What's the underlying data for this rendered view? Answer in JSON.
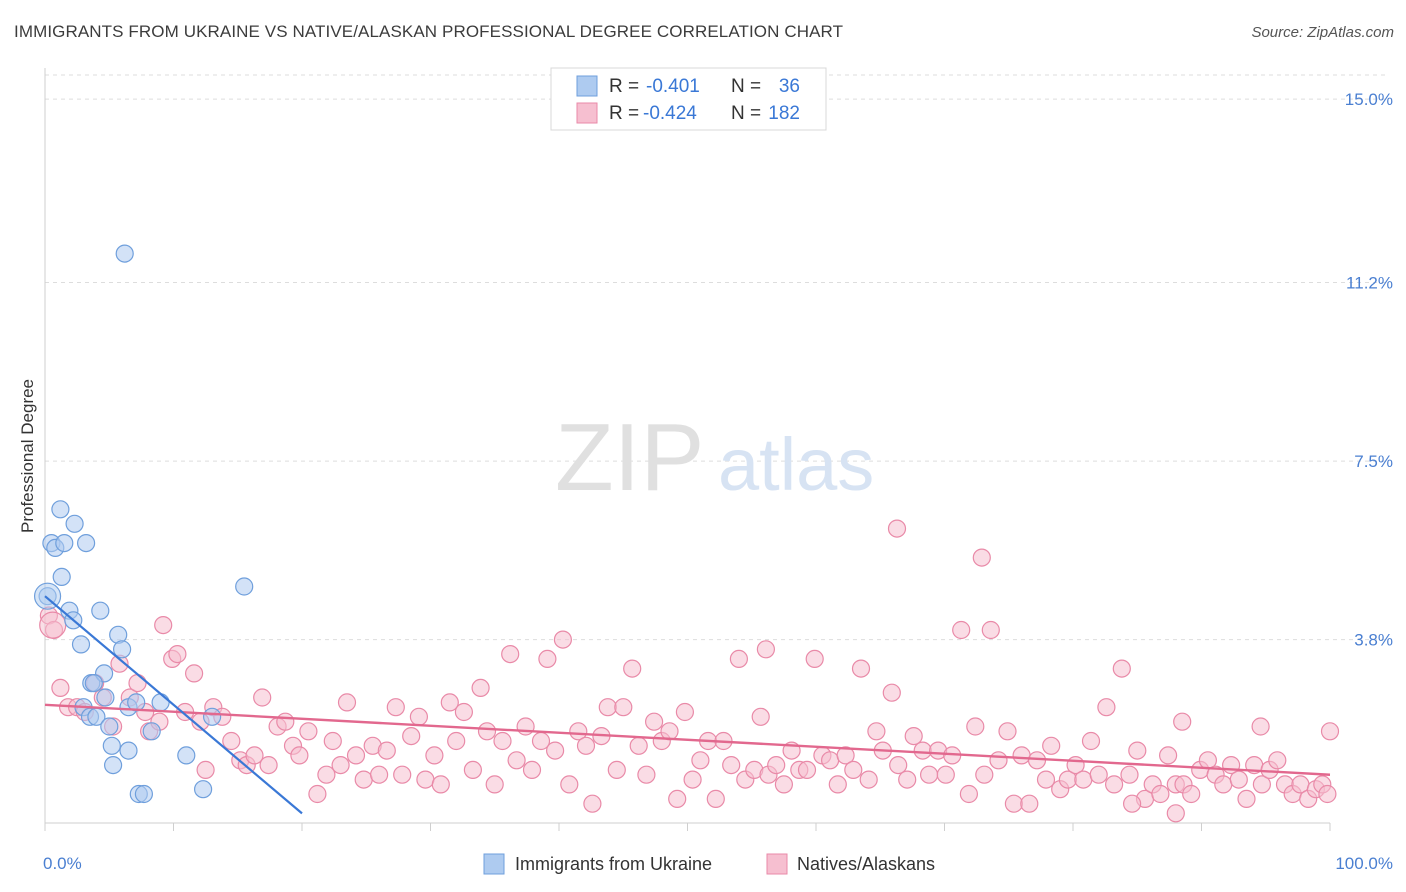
{
  "header": {
    "title": "IMMIGRANTS FROM UKRAINE VS NATIVE/ALASKAN PROFESSIONAL DEGREE CORRELATION CHART",
    "source": "Source: ZipAtlas.com"
  },
  "watermark": {
    "zip": "ZIP",
    "atlas": "atlas"
  },
  "colors": {
    "blue_fill": "#aecbf0",
    "blue_stroke": "#6f9fdc",
    "blue_line": "#3a78d6",
    "pink_fill": "#f6bfd0",
    "pink_stroke": "#e98aa8",
    "pink_line": "#e2688e",
    "tick_label": "#4a7fd1",
    "grid": "#dddddd"
  },
  "legend_top": {
    "rows": [
      {
        "r_label": "R =",
        "r_value": "-0.401",
        "n_label": "N =",
        "n_value": "36"
      },
      {
        "r_label": "R =",
        "r_value": "-0.424",
        "n_label": "N =",
        "n_value": "182"
      }
    ]
  },
  "legend_bottom": {
    "items": [
      "Immigrants from Ukraine",
      "Natives/Alaskans"
    ]
  },
  "chart_data": {
    "type": "scatter",
    "title": "IMMIGRANTS FROM UKRAINE VS NATIVE/ALASKAN PROFESSIONAL DEGREE CORRELATION CHART",
    "xlabel": "",
    "ylabel": "Professional Degree",
    "xlim": [
      0,
      100
    ],
    "ylim": [
      0,
      15.5
    ],
    "x_tick_labels": [
      "0.0%",
      "100.0%"
    ],
    "y_ticks": [
      3.8,
      7.5,
      11.2,
      15.0
    ],
    "y_tick_labels": [
      "3.8%",
      "7.5%",
      "11.2%",
      "15.0%"
    ],
    "series": [
      {
        "name": "Immigrants from Ukraine",
        "R": -0.401,
        "N": 36,
        "trend": {
          "x": [
            0,
            20
          ],
          "y": [
            4.7,
            0.2
          ]
        },
        "points": [
          [
            0.5,
            5.8
          ],
          [
            0.8,
            5.7
          ],
          [
            1.2,
            6.5
          ],
          [
            1.3,
            5.1
          ],
          [
            1.5,
            5.8
          ],
          [
            2.3,
            6.2
          ],
          [
            3.2,
            5.8
          ],
          [
            1.9,
            4.4
          ],
          [
            2.2,
            4.2
          ],
          [
            2.8,
            3.7
          ],
          [
            4.3,
            4.4
          ],
          [
            3.6,
            2.9
          ],
          [
            4.6,
            3.1
          ],
          [
            4.7,
            2.6
          ],
          [
            5.7,
            3.9
          ],
          [
            6.0,
            3.6
          ],
          [
            6.5,
            2.4
          ],
          [
            7.1,
            2.5
          ],
          [
            3.0,
            2.4
          ],
          [
            3.5,
            2.2
          ],
          [
            4.0,
            2.2
          ],
          [
            5.0,
            2.0
          ],
          [
            5.2,
            1.6
          ],
          [
            5.3,
            1.2
          ],
          [
            6.5,
            1.5
          ],
          [
            7.3,
            0.6
          ],
          [
            7.7,
            0.6
          ],
          [
            8.3,
            1.9
          ],
          [
            9.0,
            2.5
          ],
          [
            11.0,
            1.4
          ],
          [
            12.3,
            0.7
          ],
          [
            13.0,
            2.2
          ],
          [
            15.5,
            4.9
          ],
          [
            6.2,
            11.8
          ],
          [
            0.2,
            4.7
          ],
          [
            3.8,
            2.9
          ]
        ]
      },
      {
        "name": "Natives/Alaskans",
        "R": -0.424,
        "N": 182,
        "trend": {
          "x": [
            0,
            100
          ],
          "y": [
            2.45,
            1.0
          ]
        },
        "points": [
          [
            0.3,
            4.3
          ],
          [
            0.7,
            4.0
          ],
          [
            1.2,
            2.8
          ],
          [
            1.8,
            2.4
          ],
          [
            2.5,
            2.4
          ],
          [
            3.1,
            2.3
          ],
          [
            3.9,
            2.9
          ],
          [
            4.5,
            2.6
          ],
          [
            5.3,
            2.0
          ],
          [
            5.8,
            3.3
          ],
          [
            6.6,
            2.6
          ],
          [
            7.2,
            2.9
          ],
          [
            7.8,
            2.3
          ],
          [
            8.1,
            1.9
          ],
          [
            8.9,
            2.1
          ],
          [
            9.2,
            4.1
          ],
          [
            9.9,
            3.4
          ],
          [
            10.3,
            3.5
          ],
          [
            10.9,
            2.3
          ],
          [
            11.6,
            3.1
          ],
          [
            12.1,
            2.1
          ],
          [
            12.5,
            1.1
          ],
          [
            13.1,
            2.4
          ],
          [
            13.8,
            2.2
          ],
          [
            14.5,
            1.7
          ],
          [
            15.2,
            1.3
          ],
          [
            15.7,
            1.2
          ],
          [
            16.3,
            1.4
          ],
          [
            16.9,
            2.6
          ],
          [
            17.4,
            1.2
          ],
          [
            18.1,
            2.0
          ],
          [
            18.7,
            2.1
          ],
          [
            19.3,
            1.6
          ],
          [
            19.8,
            1.4
          ],
          [
            20.5,
            1.9
          ],
          [
            21.2,
            0.6
          ],
          [
            21.9,
            1.0
          ],
          [
            22.4,
            1.7
          ],
          [
            23.0,
            1.2
          ],
          [
            23.5,
            2.5
          ],
          [
            24.2,
            1.4
          ],
          [
            24.8,
            0.9
          ],
          [
            25.5,
            1.6
          ],
          [
            26.0,
            1.0
          ],
          [
            26.6,
            1.5
          ],
          [
            27.3,
            2.4
          ],
          [
            27.8,
            1.0
          ],
          [
            28.5,
            1.8
          ],
          [
            29.1,
            2.2
          ],
          [
            29.6,
            0.9
          ],
          [
            30.3,
            1.4
          ],
          [
            30.8,
            0.8
          ],
          [
            31.5,
            2.5
          ],
          [
            32.0,
            1.7
          ],
          [
            32.6,
            2.3
          ],
          [
            33.3,
            1.1
          ],
          [
            33.9,
            2.8
          ],
          [
            34.4,
            1.9
          ],
          [
            35.0,
            0.8
          ],
          [
            35.6,
            1.7
          ],
          [
            36.2,
            3.5
          ],
          [
            36.7,
            1.3
          ],
          [
            37.4,
            2.0
          ],
          [
            37.9,
            1.1
          ],
          [
            38.6,
            1.7
          ],
          [
            39.1,
            3.4
          ],
          [
            39.7,
            1.5
          ],
          [
            40.3,
            3.8
          ],
          [
            40.8,
            0.8
          ],
          [
            41.5,
            1.9
          ],
          [
            42.1,
            1.6
          ],
          [
            42.6,
            0.4
          ],
          [
            43.3,
            1.8
          ],
          [
            43.8,
            2.4
          ],
          [
            44.5,
            1.1
          ],
          [
            45.0,
            2.4
          ],
          [
            45.7,
            3.2
          ],
          [
            46.2,
            1.6
          ],
          [
            46.8,
            1.0
          ],
          [
            47.4,
            2.1
          ],
          [
            48.0,
            1.7
          ],
          [
            48.6,
            1.9
          ],
          [
            49.2,
            0.5
          ],
          [
            49.8,
            2.3
          ],
          [
            50.4,
            0.9
          ],
          [
            51.0,
            1.3
          ],
          [
            51.6,
            1.7
          ],
          [
            52.2,
            0.5
          ],
          [
            52.8,
            1.7
          ],
          [
            53.4,
            1.2
          ],
          [
            54.0,
            3.4
          ],
          [
            54.5,
            0.9
          ],
          [
            55.2,
            1.1
          ],
          [
            55.7,
            2.2
          ],
          [
            56.3,
            1.0
          ],
          [
            56.9,
            1.2
          ],
          [
            57.5,
            0.8
          ],
          [
            58.1,
            1.5
          ],
          [
            58.7,
            1.1
          ],
          [
            59.3,
            1.1
          ],
          [
            59.9,
            3.4
          ],
          [
            60.5,
            1.4
          ],
          [
            61.1,
            1.3
          ],
          [
            61.7,
            0.8
          ],
          [
            62.3,
            1.4
          ],
          [
            62.9,
            1.1
          ],
          [
            63.5,
            3.2
          ],
          [
            64.1,
            0.9
          ],
          [
            64.7,
            1.9
          ],
          [
            65.2,
            1.5
          ],
          [
            65.9,
            2.7
          ],
          [
            66.4,
            1.2
          ],
          [
            67.1,
            0.9
          ],
          [
            67.6,
            1.8
          ],
          [
            68.3,
            1.5
          ],
          [
            68.8,
            1.0
          ],
          [
            69.5,
            1.5
          ],
          [
            70.1,
            1.0
          ],
          [
            70.6,
            1.4
          ],
          [
            71.3,
            4.0
          ],
          [
            71.9,
            0.6
          ],
          [
            72.4,
            2.0
          ],
          [
            73.1,
            1.0
          ],
          [
            73.6,
            4.0
          ],
          [
            74.2,
            1.3
          ],
          [
            74.9,
            1.9
          ],
          [
            75.4,
            0.4
          ],
          [
            76.0,
            1.4
          ],
          [
            76.6,
            0.4
          ],
          [
            77.2,
            1.3
          ],
          [
            77.9,
            0.9
          ],
          [
            78.3,
            1.6
          ],
          [
            79.0,
            0.7
          ],
          [
            79.6,
            0.9
          ],
          [
            80.2,
            1.2
          ],
          [
            80.8,
            0.9
          ],
          [
            81.4,
            1.7
          ],
          [
            82.0,
            1.0
          ],
          [
            82.6,
            2.4
          ],
          [
            83.2,
            0.8
          ],
          [
            83.8,
            3.2
          ],
          [
            84.4,
            1.0
          ],
          [
            85.0,
            1.5
          ],
          [
            85.6,
            0.5
          ],
          [
            86.2,
            0.8
          ],
          [
            86.8,
            0.6
          ],
          [
            87.4,
            1.4
          ],
          [
            88.0,
            0.8
          ],
          [
            88.6,
            0.8
          ],
          [
            89.2,
            0.6
          ],
          [
            89.9,
            1.1
          ],
          [
            90.5,
            1.3
          ],
          [
            91.1,
            1.0
          ],
          [
            91.7,
            0.8
          ],
          [
            92.3,
            1.2
          ],
          [
            92.9,
            0.9
          ],
          [
            93.5,
            0.5
          ],
          [
            94.1,
            1.2
          ],
          [
            94.7,
            0.8
          ],
          [
            95.3,
            1.1
          ],
          [
            95.9,
            1.3
          ],
          [
            96.5,
            0.8
          ],
          [
            97.1,
            0.6
          ],
          [
            97.7,
            0.8
          ],
          [
            98.3,
            0.5
          ],
          [
            98.9,
            0.7
          ],
          [
            99.4,
            0.8
          ],
          [
            99.8,
            0.6
          ],
          [
            66.3,
            6.1
          ],
          [
            72.9,
            5.5
          ],
          [
            56.1,
            3.6
          ],
          [
            88.5,
            2.1
          ],
          [
            94.6,
            2.0
          ],
          [
            100.0,
            1.9
          ],
          [
            88.0,
            0.2
          ],
          [
            84.6,
            0.4
          ]
        ]
      }
    ],
    "grid": true,
    "legend_position": "top-center"
  }
}
